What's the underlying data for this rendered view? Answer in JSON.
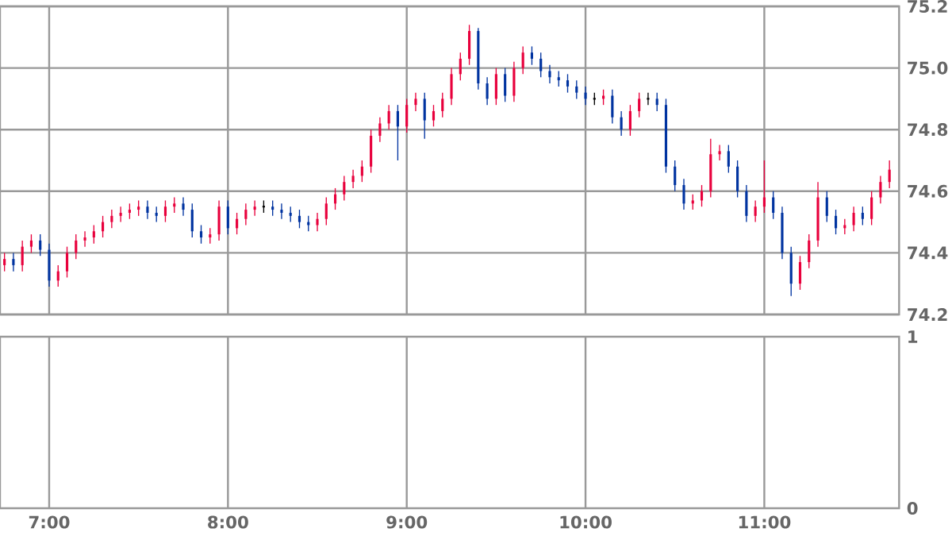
{
  "chart_data": [
    {
      "type": "candlestick",
      "xlim": [
        6.725,
        11.754
      ],
      "ylim": [
        74.2,
        75.2
      ],
      "xticks": [
        {
          "value": 7,
          "label": null
        },
        {
          "value": 8,
          "label": null
        },
        {
          "value": 9,
          "label": null
        },
        {
          "value": 10,
          "label": null
        },
        {
          "value": 11,
          "label": null
        }
      ],
      "yticks": [
        74.2,
        74.4,
        74.6,
        74.8,
        {
          "value": 75.0,
          "label": "75.0"
        },
        75.2
      ],
      "grid": true,
      "tick_labels": "y",
      "x": [
        6.75,
        6.8,
        6.85,
        6.9,
        6.95,
        7.0,
        7.05,
        7.1,
        7.15,
        7.2,
        7.25,
        7.3,
        7.35,
        7.4,
        7.45,
        7.5,
        7.55,
        7.6,
        7.65,
        7.7,
        7.75,
        7.8,
        7.85,
        7.9,
        7.95,
        8.0,
        8.05,
        8.1,
        8.15,
        8.2,
        8.25,
        8.3,
        8.35,
        8.4,
        8.45,
        8.5,
        8.55,
        8.6,
        8.65,
        8.7,
        8.75,
        8.8,
        8.85,
        8.9,
        8.95,
        9.0,
        9.05,
        9.1,
        9.15,
        9.2,
        9.25,
        9.3,
        9.35,
        9.4,
        9.45,
        9.5,
        9.55,
        9.6,
        9.65,
        9.7,
        9.75,
        9.8,
        9.85,
        9.9,
        9.95,
        10.0,
        10.05,
        10.1,
        10.15,
        10.2,
        10.25,
        10.3,
        10.35,
        10.4,
        10.45,
        10.5,
        10.55,
        10.6,
        10.65,
        10.7,
        10.75,
        10.8,
        10.85,
        10.9,
        10.95,
        11.0,
        11.05,
        11.1,
        11.15,
        11.2,
        11.25,
        11.3,
        11.35,
        11.4,
        11.45,
        11.5,
        11.55,
        11.6,
        11.65,
        11.7
      ],
      "ohlc": [
        [
          74.36,
          74.4,
          74.34,
          74.38
        ],
        [
          74.38,
          74.4,
          74.34,
          74.36
        ],
        [
          74.36,
          74.44,
          74.34,
          74.42
        ],
        [
          74.42,
          74.46,
          74.4,
          74.44
        ],
        [
          74.44,
          74.46,
          74.39,
          74.41
        ],
        [
          74.41,
          74.43,
          74.29,
          74.31
        ],
        [
          74.31,
          74.36,
          74.29,
          74.34
        ],
        [
          74.34,
          74.42,
          74.32,
          74.4
        ],
        [
          74.4,
          74.46,
          74.38,
          74.44
        ],
        [
          74.44,
          74.47,
          74.42,
          74.45
        ],
        [
          74.45,
          74.49,
          74.43,
          74.47
        ],
        [
          74.47,
          74.52,
          74.45,
          74.5
        ],
        [
          74.5,
          74.54,
          74.48,
          74.52
        ],
        [
          74.52,
          74.55,
          74.5,
          74.53
        ],
        [
          74.53,
          74.56,
          74.51,
          74.54
        ],
        [
          74.54,
          74.57,
          74.52,
          74.55
        ],
        [
          74.55,
          74.57,
          74.51,
          74.53
        ],
        [
          74.53,
          74.55,
          74.5,
          74.52
        ],
        [
          74.52,
          74.57,
          74.5,
          74.55
        ],
        [
          74.55,
          74.58,
          74.53,
          74.56
        ],
        [
          74.56,
          74.58,
          74.52,
          74.54
        ],
        [
          74.54,
          74.56,
          74.45,
          74.47
        ],
        [
          74.47,
          74.49,
          74.43,
          74.45
        ],
        [
          74.45,
          74.48,
          74.43,
          74.46
        ],
        [
          74.46,
          74.57,
          74.44,
          74.55
        ],
        [
          74.55,
          74.57,
          74.46,
          74.48
        ],
        [
          74.48,
          74.53,
          74.46,
          74.51
        ],
        [
          74.51,
          74.56,
          74.49,
          74.54
        ],
        [
          74.54,
          74.57,
          74.52,
          74.55
        ],
        [
          74.55,
          74.57,
          74.53,
          74.55
        ],
        [
          74.55,
          74.57,
          74.52,
          74.54
        ],
        [
          74.54,
          74.56,
          74.51,
          74.53
        ],
        [
          74.53,
          74.55,
          74.5,
          74.52
        ],
        [
          74.52,
          74.54,
          74.48,
          74.5
        ],
        [
          74.5,
          74.52,
          74.47,
          74.49
        ],
        [
          74.49,
          74.53,
          74.47,
          74.51
        ],
        [
          74.51,
          74.58,
          74.49,
          74.56
        ],
        [
          74.56,
          74.61,
          74.54,
          74.59
        ],
        [
          74.59,
          74.65,
          74.57,
          74.63
        ],
        [
          74.63,
          74.67,
          74.61,
          74.65
        ],
        [
          74.65,
          74.7,
          74.63,
          74.68
        ],
        [
          74.68,
          74.8,
          74.66,
          74.78
        ],
        [
          74.78,
          74.84,
          74.76,
          74.82
        ],
        [
          74.82,
          74.88,
          74.8,
          74.86
        ],
        [
          74.86,
          74.88,
          74.7,
          74.81
        ],
        [
          74.81,
          74.9,
          74.79,
          74.88
        ],
        [
          74.88,
          74.92,
          74.86,
          74.9
        ],
        [
          74.9,
          74.92,
          74.77,
          74.83
        ],
        [
          74.83,
          74.88,
          74.81,
          74.86
        ],
        [
          74.86,
          74.92,
          74.84,
          74.9
        ],
        [
          74.9,
          75.0,
          74.88,
          74.98
        ],
        [
          74.98,
          75.05,
          74.96,
          75.03
        ],
        [
          75.03,
          75.14,
          75.01,
          75.12
        ],
        [
          75.12,
          75.13,
          74.93,
          74.95
        ],
        [
          74.95,
          74.97,
          74.88,
          74.9
        ],
        [
          74.9,
          75.0,
          74.88,
          74.98
        ],
        [
          74.98,
          75.0,
          74.89,
          74.91
        ],
        [
          74.91,
          75.02,
          74.89,
          75.0
        ],
        [
          75.0,
          75.07,
          74.98,
          75.05
        ],
        [
          75.05,
          75.07,
          75.01,
          75.03
        ],
        [
          75.03,
          75.05,
          74.97,
          74.99
        ],
        [
          74.99,
          75.01,
          74.95,
          74.97
        ],
        [
          74.97,
          74.99,
          74.94,
          74.96
        ],
        [
          74.96,
          74.98,
          74.92,
          74.94
        ],
        [
          74.94,
          74.96,
          74.9,
          74.92
        ],
        [
          74.92,
          74.94,
          74.88,
          74.9
        ],
        [
          74.9,
          74.92,
          74.88,
          74.9
        ],
        [
          74.9,
          74.93,
          74.88,
          74.91
        ],
        [
          74.91,
          74.93,
          74.82,
          74.84
        ],
        [
          74.84,
          74.86,
          74.78,
          74.8
        ],
        [
          74.8,
          74.88,
          74.78,
          74.86
        ],
        [
          74.86,
          74.92,
          74.84,
          74.9
        ],
        [
          74.9,
          74.92,
          74.88,
          74.9
        ],
        [
          74.9,
          74.92,
          74.86,
          74.88
        ],
        [
          74.88,
          74.9,
          74.66,
          74.68
        ],
        [
          74.68,
          74.7,
          74.6,
          74.62
        ],
        [
          74.62,
          74.64,
          74.54,
          74.56
        ],
        [
          74.56,
          74.59,
          74.54,
          74.57
        ],
        [
          74.57,
          74.62,
          74.55,
          74.6
        ],
        [
          74.6,
          74.77,
          74.58,
          74.72
        ],
        [
          74.72,
          74.75,
          74.7,
          74.73
        ],
        [
          74.73,
          74.75,
          74.66,
          74.68
        ],
        [
          74.68,
          74.7,
          74.58,
          74.6
        ],
        [
          74.6,
          74.62,
          74.5,
          74.52
        ],
        [
          74.52,
          74.57,
          74.5,
          74.55
        ],
        [
          74.55,
          74.7,
          74.53,
          74.58
        ],
        [
          74.58,
          74.6,
          74.51,
          74.53
        ],
        [
          74.53,
          74.55,
          74.38,
          74.4
        ],
        [
          74.4,
          74.42,
          74.26,
          74.3
        ],
        [
          74.3,
          74.39,
          74.28,
          74.37
        ],
        [
          74.37,
          74.46,
          74.35,
          74.44
        ],
        [
          74.44,
          74.63,
          74.42,
          74.58
        ],
        [
          74.58,
          74.6,
          74.5,
          74.52
        ],
        [
          74.52,
          74.54,
          74.46,
          74.48
        ],
        [
          74.48,
          74.51,
          74.46,
          74.49
        ],
        [
          74.49,
          74.55,
          74.47,
          74.53
        ],
        [
          74.53,
          74.55,
          74.49,
          74.51
        ],
        [
          74.51,
          74.6,
          74.49,
          74.58
        ],
        [
          74.58,
          74.65,
          74.56,
          74.63
        ],
        [
          74.63,
          74.7,
          74.61,
          74.67
        ]
      ],
      "colors": [
        "#e8003c",
        "#0033a0",
        "#e8003c",
        "#e8003c",
        "#0033a0",
        "#0033a0",
        "#e8003c",
        "#e8003c",
        "#e8003c",
        "#e8003c",
        "#e8003c",
        "#e8003c",
        "#e8003c",
        "#e8003c",
        "#e8003c",
        "#e8003c",
        "#0033a0",
        "#0033a0",
        "#e8003c",
        "#e8003c",
        "#0033a0",
        "#0033a0",
        "#0033a0",
        "#e8003c",
        "#e8003c",
        "#0033a0",
        "#e8003c",
        "#e8003c",
        "#e8003c",
        "#000000",
        "#0033a0",
        "#0033a0",
        "#0033a0",
        "#0033a0",
        "#0033a0",
        "#e8003c",
        "#e8003c",
        "#e8003c",
        "#e8003c",
        "#e8003c",
        "#e8003c",
        "#e8003c",
        "#e8003c",
        "#e8003c",
        "#0033a0",
        "#e8003c",
        "#e8003c",
        "#0033a0",
        "#e8003c",
        "#e8003c",
        "#e8003c",
        "#e8003c",
        "#e8003c",
        "#0033a0",
        "#0033a0",
        "#e8003c",
        "#0033a0",
        "#e8003c",
        "#e8003c",
        "#0033a0",
        "#0033a0",
        "#0033a0",
        "#0033a0",
        "#0033a0",
        "#0033a0",
        "#0033a0",
        "#000000",
        "#e8003c",
        "#0033a0",
        "#0033a0",
        "#e8003c",
        "#e8003c",
        "#000000",
        "#0033a0",
        "#0033a0",
        "#0033a0",
        "#0033a0",
        "#e8003c",
        "#e8003c",
        "#e8003c",
        "#e8003c",
        "#0033a0",
        "#0033a0",
        "#0033a0",
        "#e8003c",
        "#e8003c",
        "#0033a0",
        "#0033a0",
        "#0033a0",
        "#e8003c",
        "#e8003c",
        "#e8003c",
        "#0033a0",
        "#0033a0",
        "#e8003c",
        "#e8003c",
        "#0033a0",
        "#e8003c",
        "#e8003c",
        "#e8003c"
      ]
    },
    {
      "type": "bar",
      "xlim": [
        6.725,
        11.754
      ],
      "ylim": [
        0,
        1
      ],
      "xticks": [
        {
          "value": 7,
          "label": "7:00"
        },
        {
          "value": 8,
          "label": "8:00"
        },
        {
          "value": 9,
          "label": "9:00"
        },
        {
          "value": 10,
          "label": "10:00"
        },
        {
          "value": 11,
          "label": "11:00"
        }
      ],
      "yticks": [
        0,
        1
      ],
      "grid": "x"
    }
  ]
}
